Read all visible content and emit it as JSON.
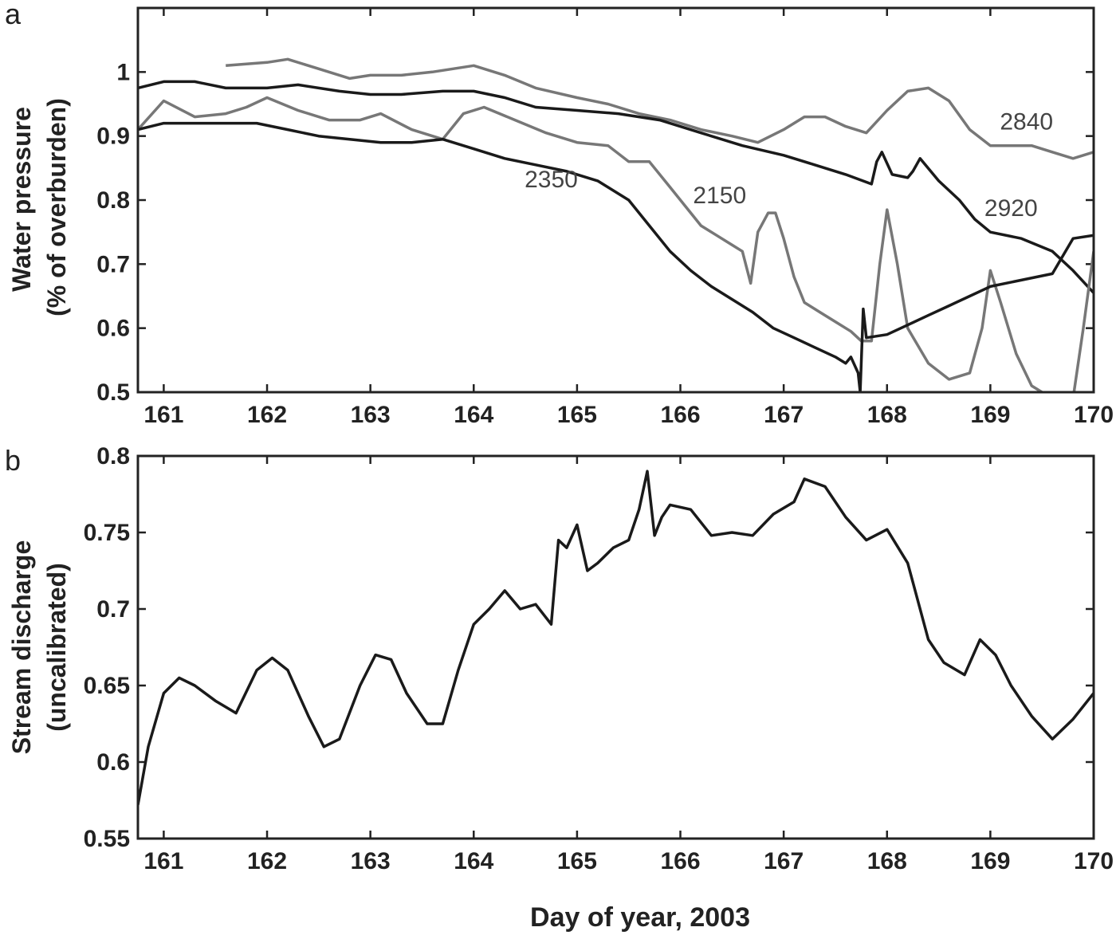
{
  "chart_data": [
    {
      "panel": "a",
      "type": "line",
      "ylabel": [
        "Water pressure",
        "(% of overburden)"
      ],
      "xlim": [
        160.75,
        170
      ],
      "ylim": [
        0.5,
        1.1
      ],
      "x_ticks": [
        161,
        162,
        163,
        164,
        165,
        166,
        167,
        168,
        169,
        170
      ],
      "x_tick_labels": [
        "161",
        "162",
        "163",
        "164",
        "165",
        "166",
        "167",
        "168",
        "169",
        "170"
      ],
      "y_ticks": [
        0.5,
        0.6,
        0.7,
        0.8,
        0.9,
        1.0
      ],
      "y_tick_labels": [
        "0.5",
        "0.6",
        "0.7",
        "0.8",
        "0.9",
        "1"
      ],
      "series": [
        {
          "name": "2840",
          "color": "#777777",
          "x": [
            161.6,
            162.0,
            162.2,
            162.5,
            162.8,
            163.0,
            163.3,
            163.6,
            164.0,
            164.3,
            164.6,
            165.0,
            165.3,
            165.6,
            165.9,
            166.2,
            166.5,
            166.75,
            167.0,
            167.2,
            167.4,
            167.6,
            167.8,
            168.0,
            168.2,
            168.4,
            168.6,
            168.8,
            169.0,
            169.2,
            169.4,
            169.6,
            169.8,
            170.0
          ],
          "y": [
            1.01,
            1.015,
            1.02,
            1.005,
            0.99,
            0.995,
            0.995,
            1.0,
            1.01,
            0.995,
            0.975,
            0.96,
            0.95,
            0.935,
            0.925,
            0.91,
            0.9,
            0.89,
            0.91,
            0.93,
            0.93,
            0.915,
            0.905,
            0.94,
            0.97,
            0.975,
            0.955,
            0.91,
            0.885,
            0.885,
            0.885,
            0.875,
            0.865,
            0.875
          ]
        },
        {
          "name": "2920",
          "color": "#1a1a1a",
          "x": [
            160.75,
            161.0,
            161.3,
            161.6,
            162.0,
            162.3,
            162.7,
            163.0,
            163.3,
            163.7,
            164.0,
            164.3,
            164.6,
            165.0,
            165.4,
            165.8,
            166.2,
            166.6,
            167.0,
            167.3,
            167.6,
            167.85,
            167.9,
            167.95,
            168.05,
            168.2,
            168.25,
            168.32,
            168.5,
            168.7,
            168.85,
            169.0,
            169.3,
            169.6,
            169.8,
            170.0
          ],
          "y": [
            0.975,
            0.985,
            0.985,
            0.975,
            0.975,
            0.98,
            0.97,
            0.965,
            0.965,
            0.97,
            0.97,
            0.96,
            0.945,
            0.94,
            0.935,
            0.925,
            0.905,
            0.885,
            0.87,
            0.855,
            0.84,
            0.825,
            0.86,
            0.875,
            0.84,
            0.835,
            0.845,
            0.865,
            0.83,
            0.8,
            0.77,
            0.75,
            0.74,
            0.72,
            0.69,
            0.655
          ]
        },
        {
          "name": "2150",
          "color": "#777777",
          "x": [
            160.75,
            161.0,
            161.3,
            161.6,
            161.8,
            162.0,
            162.3,
            162.6,
            162.9,
            163.1,
            163.4,
            163.7,
            163.9,
            164.1,
            164.4,
            164.7,
            165.0,
            165.3,
            165.5,
            165.7,
            165.9,
            166.05,
            166.2,
            166.35,
            166.5,
            166.6,
            166.68,
            166.75,
            166.85,
            166.92,
            167.0,
            167.1,
            167.2,
            167.35,
            167.5,
            167.65,
            167.75,
            167.85,
            167.93,
            168.0,
            168.1,
            168.2,
            168.4,
            168.6,
            168.8,
            168.92,
            169.0,
            169.1,
            169.25,
            169.4,
            169.5,
            169.6,
            169.72,
            169.8,
            169.9,
            170.0
          ],
          "y": [
            0.91,
            0.955,
            0.93,
            0.935,
            0.945,
            0.96,
            0.94,
            0.925,
            0.925,
            0.935,
            0.91,
            0.895,
            0.935,
            0.945,
            0.925,
            0.905,
            0.89,
            0.885,
            0.86,
            0.86,
            0.82,
            0.79,
            0.76,
            0.745,
            0.73,
            0.72,
            0.67,
            0.75,
            0.78,
            0.78,
            0.74,
            0.68,
            0.64,
            0.625,
            0.61,
            0.595,
            0.58,
            0.58,
            0.7,
            0.785,
            0.7,
            0.6,
            0.545,
            0.52,
            0.53,
            0.6,
            0.69,
            0.64,
            0.56,
            0.51,
            0.5,
            0.49,
            0.49,
            0.49,
            0.6,
            0.72
          ]
        },
        {
          "name": "2350",
          "color": "#1a1a1a",
          "x": [
            160.75,
            161.0,
            161.3,
            161.6,
            161.9,
            162.2,
            162.5,
            162.8,
            163.1,
            163.4,
            163.7,
            164.0,
            164.3,
            164.6,
            164.9,
            165.2,
            165.5,
            165.7,
            165.9,
            166.1,
            166.3,
            166.5,
            166.7,
            166.9,
            167.1,
            167.3,
            167.5,
            167.6,
            167.65,
            167.72,
            167.74,
            167.77,
            167.8,
            168.0,
            168.2,
            168.4,
            168.6,
            168.8,
            169.0,
            169.3,
            169.6,
            169.8,
            170.0
          ],
          "y": [
            0.91,
            0.92,
            0.92,
            0.92,
            0.92,
            0.91,
            0.9,
            0.895,
            0.89,
            0.89,
            0.895,
            0.88,
            0.865,
            0.855,
            0.845,
            0.83,
            0.8,
            0.76,
            0.72,
            0.69,
            0.665,
            0.645,
            0.625,
            0.6,
            0.585,
            0.57,
            0.555,
            0.545,
            0.555,
            0.53,
            0.5,
            0.63,
            0.585,
            0.59,
            0.605,
            0.62,
            0.635,
            0.65,
            0.665,
            0.675,
            0.685,
            0.74,
            0.745
          ]
        }
      ],
      "annotations": [
        {
          "text": "2840",
          "x": 169.35,
          "y": 0.91
        },
        {
          "text": "2350",
          "x": 164.75,
          "y": 0.82
        },
        {
          "text": "2150",
          "x": 166.38,
          "y": 0.795
        },
        {
          "text": "2920",
          "x": 169.2,
          "y": 0.775
        }
      ]
    },
    {
      "panel": "b",
      "type": "line",
      "ylabel": [
        "Stream discharge",
        "(uncalibrated)"
      ],
      "xlabel": "Day of year, 2003",
      "xlim": [
        160.75,
        170
      ],
      "ylim": [
        0.55,
        0.8
      ],
      "x_ticks": [
        161,
        162,
        163,
        164,
        165,
        166,
        167,
        168,
        169,
        170
      ],
      "x_tick_labels": [
        "161",
        "162",
        "163",
        "164",
        "165",
        "166",
        "167",
        "168",
        "169",
        "170"
      ],
      "y_ticks": [
        0.55,
        0.6,
        0.65,
        0.7,
        0.75,
        0.8
      ],
      "y_tick_labels": [
        "0.55",
        "0.6",
        "0.65",
        "0.7",
        "0.75",
        "0.8"
      ],
      "series": [
        {
          "name": "",
          "color": "#1a1a1a",
          "x": [
            160.75,
            160.85,
            161.0,
            161.15,
            161.3,
            161.5,
            161.7,
            161.9,
            162.05,
            162.2,
            162.4,
            162.55,
            162.7,
            162.9,
            163.05,
            163.2,
            163.35,
            163.55,
            163.7,
            163.85,
            164.0,
            164.15,
            164.3,
            164.45,
            164.6,
            164.75,
            164.82,
            164.9,
            165.0,
            165.1,
            165.2,
            165.35,
            165.5,
            165.6,
            165.68,
            165.75,
            165.82,
            165.9,
            166.1,
            166.3,
            166.5,
            166.7,
            166.9,
            167.1,
            167.2,
            167.4,
            167.6,
            167.8,
            168.0,
            168.2,
            168.4,
            168.55,
            168.75,
            168.9,
            169.05,
            169.2,
            169.4,
            169.6,
            169.8,
            170.0
          ],
          "y": [
            0.572,
            0.61,
            0.645,
            0.655,
            0.65,
            0.64,
            0.632,
            0.66,
            0.668,
            0.66,
            0.63,
            0.61,
            0.615,
            0.65,
            0.67,
            0.667,
            0.645,
            0.625,
            0.625,
            0.66,
            0.69,
            0.7,
            0.712,
            0.7,
            0.703,
            0.69,
            0.745,
            0.74,
            0.755,
            0.725,
            0.73,
            0.74,
            0.745,
            0.765,
            0.79,
            0.748,
            0.76,
            0.768,
            0.765,
            0.748,
            0.75,
            0.748,
            0.762,
            0.77,
            0.785,
            0.78,
            0.76,
            0.745,
            0.752,
            0.73,
            0.68,
            0.665,
            0.657,
            0.68,
            0.67,
            0.65,
            0.63,
            0.615,
            0.628,
            0.645
          ]
        }
      ]
    }
  ],
  "panels": {
    "a": {
      "letter": "a"
    },
    "b": {
      "letter": "b",
      "xlabel": "Day of year, 2003"
    }
  }
}
